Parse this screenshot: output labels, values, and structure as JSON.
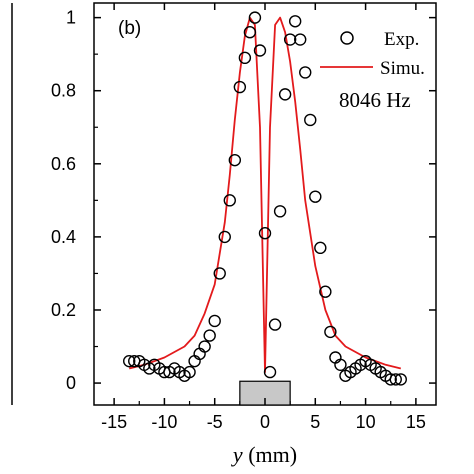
{
  "chart_data": {
    "type": "scatter",
    "panel_label": "(b)",
    "xlabel_var": "y",
    "xlabel_unit": " (mm)",
    "xlim": [
      -17,
      17
    ],
    "ylim": [
      -0.06,
      1.04
    ],
    "x_ticks": [
      -15,
      -10,
      -5,
      0,
      5,
      10,
      15
    ],
    "x_tick_labels": [
      "-15",
      "-10",
      "-5",
      "0",
      "5",
      "10",
      "15"
    ],
    "y_ticks": [
      0,
      0.2,
      0.4,
      0.6,
      0.8,
      1
    ],
    "y_tick_labels": [
      "0",
      "0.2",
      "0.4",
      "0.6",
      "0.8",
      "1"
    ],
    "annotation": "8046 Hz",
    "grey_block": {
      "x_range": [
        -2.5,
        2.5
      ],
      "y_range": [
        -0.06,
        0.005
      ],
      "color": "#c8c8c8"
    },
    "series": [
      {
        "name": "Exp.",
        "style": "open-circle",
        "color": "#000000",
        "x": [
          -13.5,
          -13,
          -12.5,
          -12,
          -11.5,
          -11,
          -10.5,
          -10,
          -9.5,
          -9,
          -8.5,
          -8,
          -7.5,
          -7,
          -6.5,
          -6,
          -5.5,
          -5,
          -4.5,
          -4,
          -3.5,
          -3,
          -2.5,
          -2,
          -1.5,
          -1,
          -0.5,
          0,
          0.5,
          1,
          1.5,
          2,
          2.5,
          3,
          3.5,
          4,
          4.5,
          5,
          5.5,
          6,
          6.5,
          7,
          7.5,
          8,
          8.5,
          9,
          9.5,
          10,
          10.5,
          11,
          11.5,
          12,
          12.5,
          13,
          13.5
        ],
        "y": [
          0.06,
          0.06,
          0.06,
          0.05,
          0.04,
          0.05,
          0.04,
          0.03,
          0.03,
          0.04,
          0.03,
          0.02,
          0.03,
          0.06,
          0.08,
          0.1,
          0.13,
          0.17,
          0.3,
          0.4,
          0.5,
          0.61,
          0.81,
          0.89,
          0.96,
          1.0,
          0.91,
          0.41,
          0.03,
          0.16,
          0.47,
          0.79,
          0.94,
          0.99,
          0.94,
          0.85,
          0.72,
          0.51,
          0.37,
          0.25,
          0.14,
          0.07,
          0.05,
          0.02,
          0.03,
          0.04,
          0.05,
          0.06,
          0.05,
          0.04,
          0.03,
          0.02,
          0.01,
          0.01,
          0.01
        ]
      },
      {
        "name": "Simu.",
        "style": "line",
        "color": "#e31a1c",
        "x": [
          -13.5,
          -12,
          -10,
          -8,
          -7,
          -6,
          -5,
          -4,
          -3.5,
          -3,
          -2.5,
          -2,
          -1.5,
          -1,
          -0.5,
          0,
          0.5,
          1,
          1.5,
          2,
          2.5,
          3,
          3.5,
          4,
          5,
          6,
          7,
          8,
          10,
          12,
          13.5
        ],
        "y": [
          0.04,
          0.05,
          0.07,
          0.1,
          0.13,
          0.19,
          0.27,
          0.44,
          0.57,
          0.72,
          0.85,
          0.95,
          1.0,
          0.98,
          0.7,
          0.03,
          0.7,
          0.98,
          1.0,
          0.96,
          0.88,
          0.77,
          0.64,
          0.5,
          0.32,
          0.2,
          0.13,
          0.1,
          0.07,
          0.05,
          0.04
        ]
      }
    ]
  }
}
